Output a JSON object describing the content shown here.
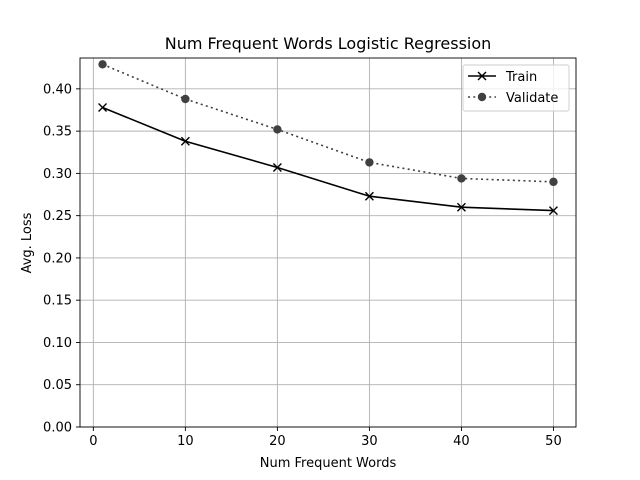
{
  "chart_data": {
    "type": "line",
    "title": "Num Frequent Words Logistic Regression",
    "xlabel": "Num Frequent Words",
    "ylabel": "Avg. Loss",
    "x": [
      1,
      10,
      20,
      30,
      40,
      50
    ],
    "xlim": [
      -1.45,
      52.45
    ],
    "ylim": [
      0,
      0.4365
    ],
    "xticks": [
      0,
      10,
      20,
      30,
      40,
      50
    ],
    "yticks": [
      0.0,
      0.05,
      0.1,
      0.15,
      0.2,
      0.25,
      0.3,
      0.35,
      0.4
    ],
    "grid": true,
    "legend_position": "upper right",
    "series": [
      {
        "name": "Train",
        "values": [
          0.378,
          0.338,
          0.307,
          0.273,
          0.26,
          0.256
        ],
        "color": "#000000",
        "marker": "x",
        "linestyle": "solid"
      },
      {
        "name": "Validate",
        "values": [
          0.429,
          0.388,
          0.352,
          0.313,
          0.294,
          0.29
        ],
        "color": "#404040",
        "marker": "o",
        "linestyle": "dotted"
      }
    ]
  }
}
